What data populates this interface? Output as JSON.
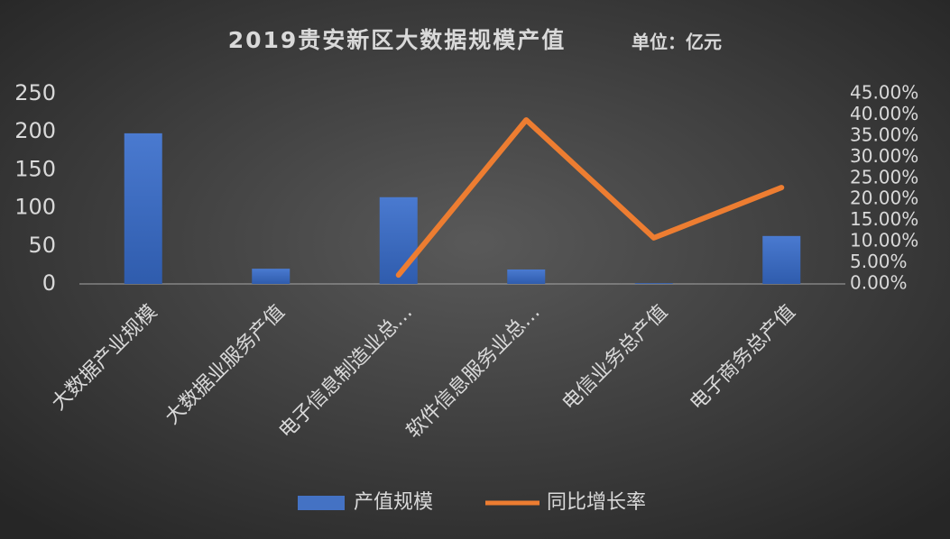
{
  "chart_data": {
    "type": "bar-line",
    "title": "2019贵安新区大数据规模产值",
    "subtitle": "单位：亿元",
    "categories": [
      "大数据产业规模",
      "大数据业服务产值",
      "电子信息制造业总…",
      "软件信息服务业总…",
      "电信业务总产值",
      "电子商务总产值"
    ],
    "series": [
      {
        "name": "产值规模",
        "color": "#4472c4",
        "type": "bar",
        "values": [
          198,
          20,
          114,
          19,
          1,
          63
        ]
      },
      {
        "name": "同比增长率",
        "color": "#ed7d31",
        "type": "line",
        "axis": "y2",
        "values": [
          null,
          null,
          2.1,
          38.8,
          10.9,
          22.8
        ]
      }
    ],
    "ylim": [
      0,
      250
    ],
    "yticks": [
      0,
      50,
      100,
      150,
      200,
      250
    ],
    "y2lim": [
      0,
      45
    ],
    "y2ticks": [
      {
        "value": 0,
        "label": "0.00%"
      },
      {
        "value": 5,
        "label": "5.00%"
      },
      {
        "value": 10,
        "label": "10.00%"
      },
      {
        "value": 15,
        "label": "15.00%"
      },
      {
        "value": 20,
        "label": "20.00%"
      },
      {
        "value": 25,
        "label": "25.00%"
      },
      {
        "value": 30,
        "label": "30.00%"
      },
      {
        "value": 35,
        "label": "35.00%"
      },
      {
        "value": 40,
        "label": "40.00%"
      },
      {
        "value": 45,
        "label": "45.00%"
      }
    ],
    "grid": false,
    "legend": "bottom"
  }
}
